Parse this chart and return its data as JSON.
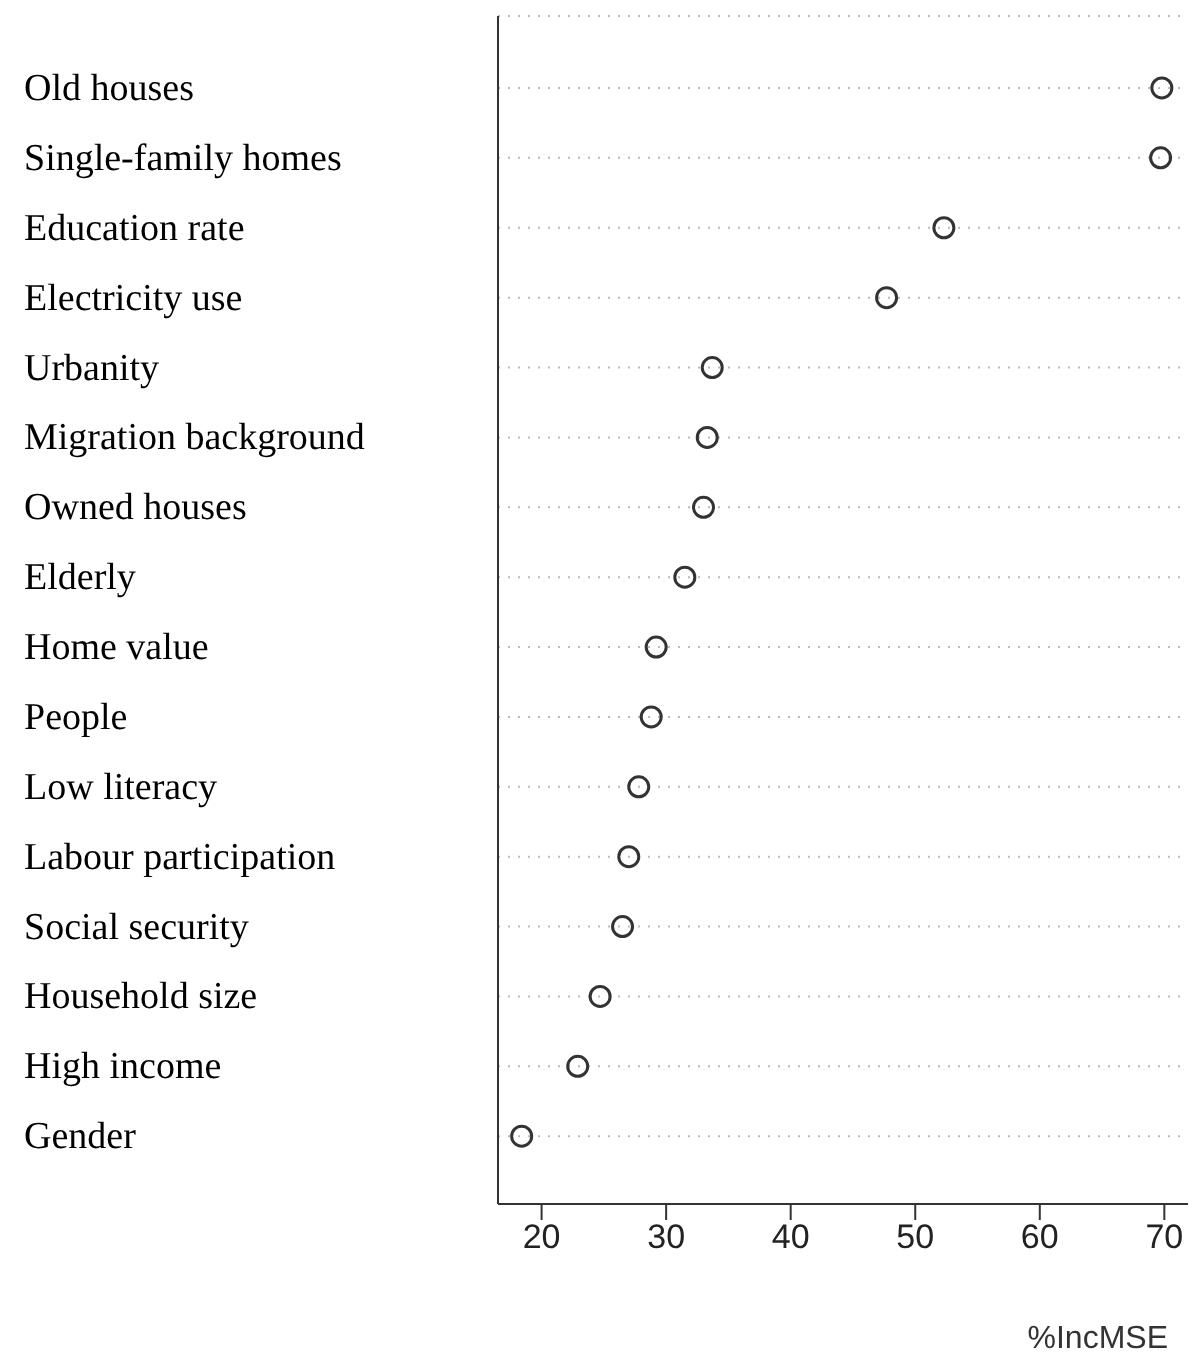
{
  "chart_data": {
    "type": "scatter",
    "xlabel": "%IncMSE",
    "categories": [
      "Old houses",
      "Single-family homes",
      "Education rate",
      "Electricity use",
      "Urbanity",
      "Migration background",
      "Owned houses",
      "Elderly",
      "Home value",
      "People",
      "Low literacy",
      "Labour participation",
      "Social security",
      "Household size",
      "High income",
      "Gender"
    ],
    "values": [
      69.8,
      69.7,
      52.3,
      47.7,
      33.7,
      33.3,
      33.0,
      31.5,
      29.2,
      28.8,
      27.8,
      27.0,
      26.5,
      24.7,
      22.9,
      18.4
    ],
    "orientation": "horizontal",
    "color": "#333333",
    "marker": "circle",
    "grid": "y",
    "legend": false,
    "xlim": [
      16.5,
      71.9
    ],
    "xticks": [
      20,
      30,
      40,
      50,
      60,
      70
    ]
  }
}
